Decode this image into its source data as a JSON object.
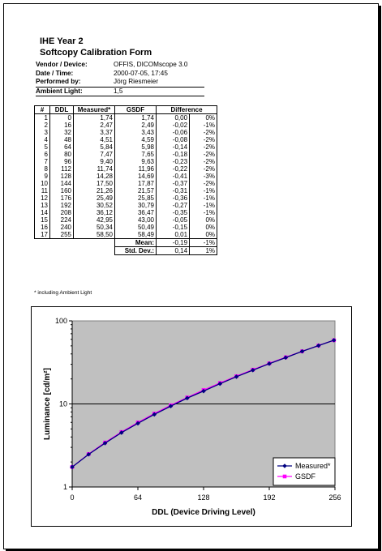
{
  "form": {
    "title": "IHE Year 2",
    "subtitle": "Softcopy Calibration Form"
  },
  "meta": [
    {
      "label": "Vendor / Device:",
      "value": "OFFIS, DICOMscope 3.0"
    },
    {
      "label": "Date / Time:",
      "value": "2000-07-05, 17:45"
    },
    {
      "label": "Performed by:",
      "value": "Jörg Riesmeier"
    },
    {
      "label": "Ambient Light:",
      "value": "1,5"
    }
  ],
  "table": {
    "headers": [
      "#",
      "DDL",
      "Measured*",
      "GSDF",
      "Difference",
      ""
    ],
    "rows": [
      [
        "1",
        "0",
        "1,74",
        "1,74",
        "0,00",
        "0%"
      ],
      [
        "2",
        "16",
        "2,47",
        "2,49",
        "-0,02",
        "-1%"
      ],
      [
        "3",
        "32",
        "3,37",
        "3,43",
        "-0,06",
        "-2%"
      ],
      [
        "4",
        "48",
        "4,51",
        "4,59",
        "-0,08",
        "-2%"
      ],
      [
        "5",
        "64",
        "5,84",
        "5,98",
        "-0,14",
        "-2%"
      ],
      [
        "6",
        "80",
        "7,47",
        "7,65",
        "-0,18",
        "-2%"
      ],
      [
        "7",
        "96",
        "9,40",
        "9,63",
        "-0,23",
        "-2%"
      ],
      [
        "8",
        "112",
        "11,74",
        "11,96",
        "-0,22",
        "-2%"
      ],
      [
        "9",
        "128",
        "14,28",
        "14,69",
        "-0,41",
        "-3%"
      ],
      [
        "10",
        "144",
        "17,50",
        "17,87",
        "-0,37",
        "-2%"
      ],
      [
        "11",
        "160",
        "21,26",
        "21,57",
        "-0,31",
        "-1%"
      ],
      [
        "12",
        "176",
        "25,49",
        "25,85",
        "-0,36",
        "-1%"
      ],
      [
        "13",
        "192",
        "30,52",
        "30,79",
        "-0,27",
        "-1%"
      ],
      [
        "14",
        "208",
        "36,12",
        "36,47",
        "-0,35",
        "-1%"
      ],
      [
        "15",
        "224",
        "42,95",
        "43,00",
        "-0,05",
        "0%"
      ],
      [
        "16",
        "240",
        "50,34",
        "50,49",
        "-0,15",
        "0%"
      ],
      [
        "17",
        "255",
        "58,50",
        "58,49",
        "0,01",
        "0%"
      ]
    ],
    "summary": [
      {
        "label": "Mean:",
        "value": "-0,19",
        "pct": "-1%"
      },
      {
        "label": "Std. Dev.:",
        "value": "0,14",
        "pct": "1%"
      }
    ]
  },
  "footnote": "* including Ambient Light",
  "chart_data": {
    "type": "line",
    "xlabel": "DDL (Device Driving Level)",
    "ylabel": "Luminance [cd/m²]",
    "yscale": "log",
    "ylim": [
      1,
      100
    ],
    "xlim": [
      0,
      256
    ],
    "xticks": [
      0,
      64,
      128,
      192,
      256
    ],
    "yticks": [
      1,
      10,
      100
    ],
    "grid": "horizontal major",
    "plot_background": "#c0c0c0",
    "legend_position": "bottom-right",
    "series": [
      {
        "name": "Measured*",
        "color": "#000080",
        "marker": "diamond",
        "x": [
          0,
          16,
          32,
          48,
          64,
          80,
          96,
          112,
          128,
          144,
          160,
          176,
          192,
          208,
          224,
          240,
          255
        ],
        "y": [
          1.74,
          2.47,
          3.37,
          4.51,
          5.84,
          7.47,
          9.4,
          11.74,
          14.28,
          17.5,
          21.26,
          25.49,
          30.52,
          36.12,
          42.95,
          50.34,
          58.5
        ]
      },
      {
        "name": "GSDF",
        "color": "#ff00ff",
        "marker": "square",
        "x": [
          0,
          16,
          32,
          48,
          64,
          80,
          96,
          112,
          128,
          144,
          160,
          176,
          192,
          208,
          224,
          240,
          255
        ],
        "y": [
          1.74,
          2.49,
          3.43,
          4.59,
          5.98,
          7.65,
          9.63,
          11.96,
          14.69,
          17.87,
          21.57,
          25.85,
          30.79,
          36.47,
          43.0,
          50.49,
          58.49
        ]
      }
    ]
  }
}
